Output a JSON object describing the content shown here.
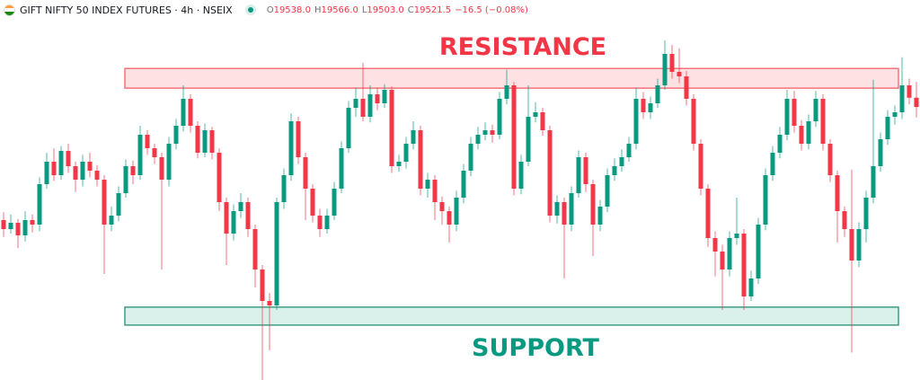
{
  "header": {
    "title": "GIFT NIFTY 50 INDEX FUTURES · 4h · NSEIX",
    "flag_icon": "india-flag-icon",
    "status_icon": "market-open-dot-icon",
    "o_label": "O",
    "o_value": "19538.0",
    "h_label": "H",
    "h_value": "19566.0",
    "l_label": "L",
    "l_value": "19503.0",
    "c_label": "C",
    "c_value": "19521.5",
    "change": "−16.5 (−0.08%)"
  },
  "colors": {
    "up": "#089981",
    "down": "#F23645",
    "resistance_fill": "#fde1e3",
    "resistance_border": "#f5737a",
    "support_fill": "#daf0eb",
    "support_border": "#3d9c86"
  },
  "chart_data": {
    "type": "candlestick",
    "title": "",
    "grid": false,
    "annotations": [
      {
        "label": "RESISTANCE",
        "type": "zone",
        "from": 19555,
        "to": 19590
      },
      {
        "label": "SUPPORT",
        "type": "zone",
        "from": 19133,
        "to": 19165
      }
    ],
    "ylim": [
      19035,
      19680
    ],
    "open": [
      19320,
      19304,
      19315.2,
      19292.8,
      19320,
      19312,
      19384,
      19424,
      19400,
      19443.2,
      19416,
      19392,
      19424,
      19408,
      19392,
      19312,
      19328,
      19368,
      19416,
      19400,
      19472,
      19448,
      19432,
      19392,
      19456,
      19488,
      19536,
      19488,
      19440,
      19480,
      19440,
      19352,
      19296,
      19336,
      19352,
      19304,
      19232,
      19176,
      19168,
      19352,
      19400,
      19496,
      19432,
      19376,
      19328,
      19304,
      19328,
      19376,
      19448,
      19520,
      19536,
      19504,
      19544,
      19528,
      19552,
      19416,
      19424,
      19456,
      19480,
      19376,
      19392,
      19352,
      19336,
      19312,
      19360,
      19408,
      19456,
      19472,
      19480,
      19472,
      19536,
      19560,
      19376,
      19424,
      19504,
      19512,
      19480,
      19328,
      19352,
      19312,
      19368,
      19432,
      19384,
      19312,
      19344,
      19400,
      19416,
      19432,
      19456,
      19536,
      19512,
      19528,
      19560,
      19616,
      19584,
      19576,
      19536,
      19456,
      19376,
      19288,
      19264,
      19232,
      19288,
      19296,
      19184,
      19216,
      19312,
      19400,
      19440,
      19472,
      19536,
      19488,
      19456,
      19496,
      19536,
      19456,
      19400,
      19336,
      19304,
      19248,
      19304,
      19360,
      19416,
      19464,
      19504,
      19512,
      19560,
      19538
    ],
    "high": [
      19334,
      19330,
      19322,
      19336,
      19330,
      19396,
      19440,
      19448,
      19452,
      19456,
      19424,
      19436,
      19440,
      19418,
      19400,
      19344,
      19380,
      19428,
      19426,
      19488,
      19480,
      19456,
      19440,
      19468,
      19500,
      19560,
      19544,
      19496,
      19492,
      19486,
      19448,
      19360,
      19348,
      19368,
      19360,
      19312,
      19240,
      19190,
      19360,
      19412,
      19510,
      19504,
      19440,
      19384,
      19340,
      19340,
      19388,
      19460,
      19532,
      19556,
      19600,
      19560,
      19556,
      19562,
      19558,
      19436,
      19468,
      19496,
      19488,
      19404,
      19400,
      19362,
      19344,
      19372,
      19420,
      19468,
      19486,
      19494,
      19490,
      19548,
      19588,
      19566,
      19436,
      19560,
      19530,
      19520,
      19488,
      19364,
      19360,
      19380,
      19444,
      19440,
      19392,
      19356,
      19412,
      19430,
      19446,
      19468,
      19556,
      19548,
      19540,
      19572,
      19640,
      19632,
      19626,
      19586,
      19544,
      19464,
      19384,
      19300,
      19276,
      19300,
      19360,
      19304,
      19230,
      19324,
      19412,
      19452,
      19486,
      19552,
      19550,
      19498,
      19508,
      19550,
      19544,
      19464,
      19408,
      19344,
      19410,
      19316,
      19372,
      19570,
      19476,
      19516,
      19524,
      19610,
      19572,
      19566
    ],
    "low": [
      19290,
      19296,
      19270,
      19282,
      19298,
      19300,
      19376,
      19390,
      19392,
      19404,
      19370,
      19380,
      19396,
      19380,
      19224,
      19300,
      19318,
      19360,
      19384,
      19392,
      19436,
      19420,
      19232,
      19380,
      19446,
      19478,
      19476,
      19430,
      19432,
      19428,
      19336,
      19240,
      19284,
      19324,
      19290,
      19200,
      19035,
      19088,
      19160,
      19340,
      19390,
      19420,
      19320,
      19316,
      19290,
      19296,
      19320,
      19368,
      19440,
      19504,
      19496,
      19494,
      19516,
      19520,
      19404,
      19406,
      19412,
      19446,
      19364,
      19360,
      19320,
      19312,
      19280,
      19300,
      19350,
      19398,
      19446,
      19462,
      19458,
      19464,
      19526,
      19364,
      19366,
      19416,
      19494,
      19470,
      19316,
      19314,
      19216,
      19300,
      19360,
      19370,
      19256,
      19300,
      19334,
      19390,
      19406,
      19424,
      19446,
      19500,
      19500,
      19520,
      19552,
      19572,
      19564,
      19524,
      19444,
      19364,
      19272,
      19220,
      19160,
      19220,
      19276,
      19160,
      19176,
      19206,
      19302,
      19390,
      19430,
      19462,
      19476,
      19444,
      19446,
      19486,
      19444,
      19388,
      19280,
      19290,
      19084,
      19236,
      19280,
      19350,
      19406,
      19454,
      19490,
      19500,
      19526,
      19503
    ],
    "close": [
      19304,
      19315.2,
      19292.8,
      19320,
      19312,
      19384,
      19424,
      19400,
      19443.2,
      19416,
      19392,
      19424,
      19408,
      19392,
      19312,
      19328,
      19368,
      19416,
      19400,
      19472,
      19448,
      19432,
      19392,
      19456,
      19488,
      19536,
      19488,
      19440,
      19480,
      19440,
      19352,
      19296,
      19336,
      19352,
      19304,
      19232,
      19176,
      19168,
      19352,
      19400,
      19496,
      19432,
      19376,
      19328,
      19304,
      19328,
      19376,
      19448,
      19520,
      19536,
      19504,
      19544,
      19528,
      19552,
      19416,
      19424,
      19456,
      19480,
      19376,
      19392,
      19352,
      19336,
      19312,
      19360,
      19408,
      19456,
      19472,
      19480,
      19472,
      19536,
      19560,
      19376,
      19424,
      19504,
      19512,
      19480,
      19328,
      19352,
      19312,
      19368,
      19432,
      19384,
      19312,
      19344,
      19400,
      19416,
      19432,
      19456,
      19536,
      19512,
      19528,
      19560,
      19616,
      19584,
      19576,
      19536,
      19456,
      19376,
      19288,
      19264,
      19232,
      19288,
      19296,
      19184,
      19216,
      19312,
      19400,
      19440,
      19472,
      19536,
      19488,
      19456,
      19496,
      19536,
      19456,
      19400,
      19336,
      19304,
      19248,
      19304,
      19360,
      19416,
      19464,
      19504,
      19512,
      19560,
      19538,
      19521.5
    ]
  }
}
